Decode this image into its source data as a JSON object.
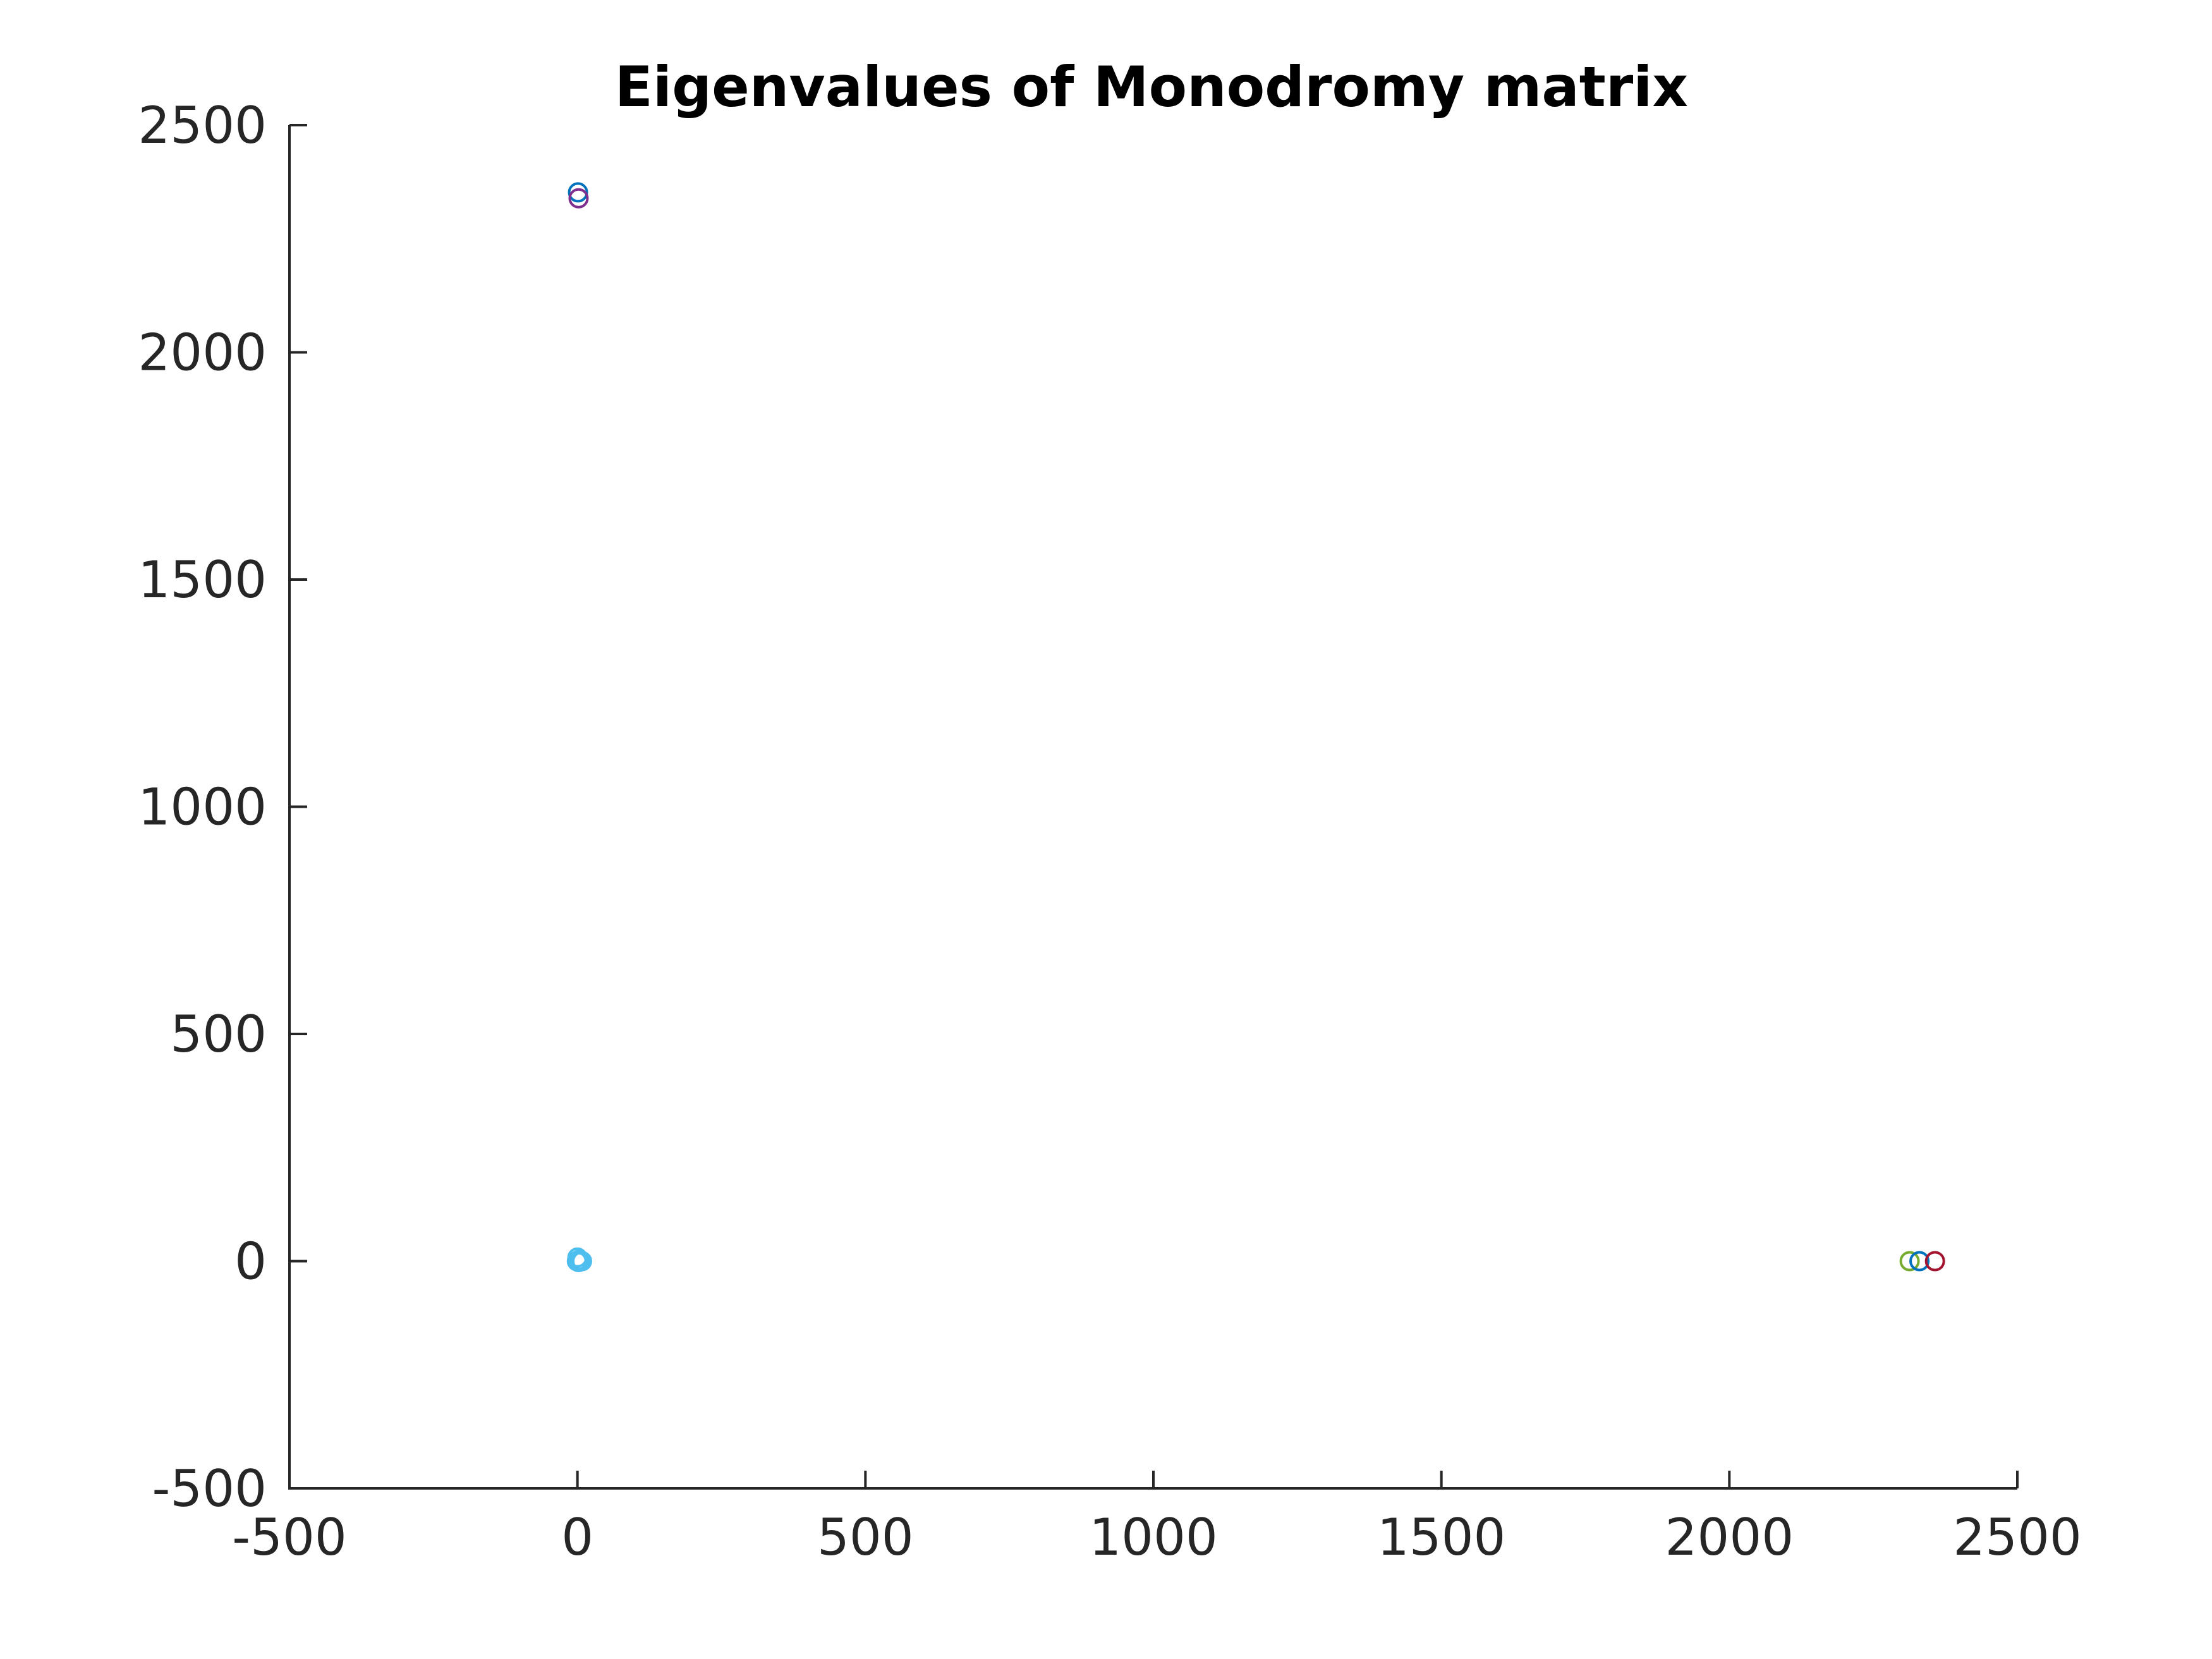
{
  "chart_data": {
    "type": "scatter",
    "title": "Eigenvalues of Monodromy matrix",
    "xlabel": "",
    "ylabel": "",
    "xlim": [
      -500,
      2500
    ],
    "ylim": [
      -500,
      2500
    ],
    "x_ticks": [
      "-500",
      "0",
      "500",
      "1000",
      "1500",
      "2000",
      "2500"
    ],
    "y_ticks": [
      "-500",
      "0",
      "500",
      "1000",
      "1500",
      "2000",
      "2500"
    ],
    "grid": false,
    "legend": "none",
    "marker": "circle-open",
    "points": [
      {
        "x": 1,
        "y": 2352,
        "color": "#0072BD"
      },
      {
        "x": 2,
        "y": 2339,
        "color": "#7E2F8E"
      },
      {
        "x": 2313,
        "y": 0,
        "color": "#77AC30"
      },
      {
        "x": 2330,
        "y": 0,
        "color": "#0072BD"
      },
      {
        "x": 2357,
        "y": 0,
        "color": "#A2142F"
      },
      {
        "x": 0,
        "y": 8,
        "color": "#4DBEEE"
      },
      {
        "x": 1,
        "y": 1,
        "color": "#4DBEEE"
      },
      {
        "x": -1,
        "y": 0,
        "color": "#4DBEEE"
      },
      {
        "x": 5,
        "y": 0,
        "color": "#4DBEEE"
      },
      {
        "x": 8,
        "y": 0,
        "color": "#4DBEEE"
      },
      {
        "x": 2,
        "y": -2,
        "color": "#4DBEEE"
      },
      {
        "x": 3,
        "y": 3,
        "color": "#4DBEEE"
      }
    ]
  }
}
